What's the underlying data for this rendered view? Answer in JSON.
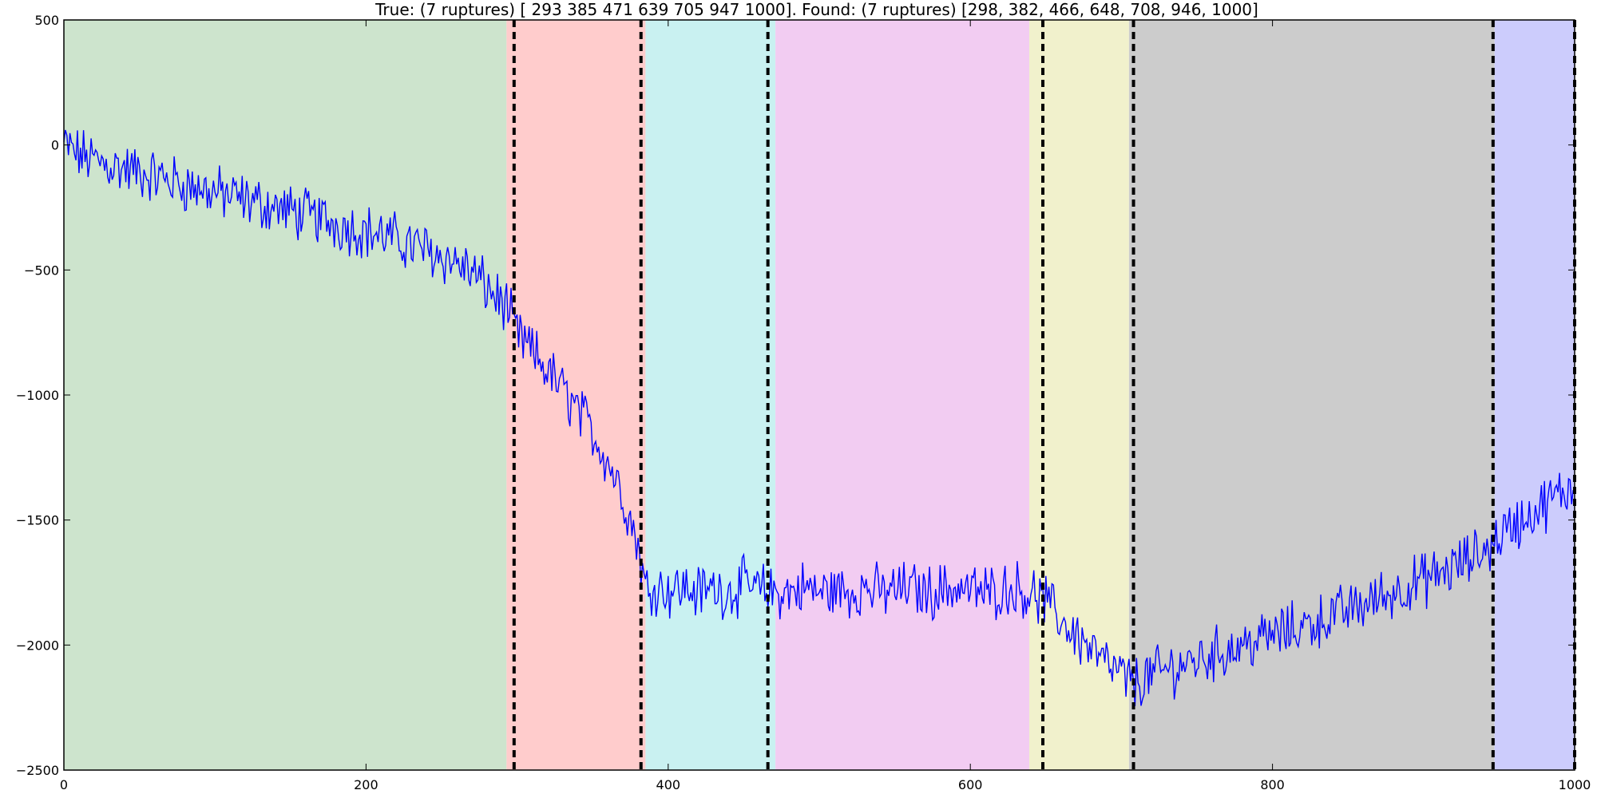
{
  "chart_data": {
    "type": "line",
    "title": "True: (7 ruptures) [ 293  385  471  639  705  947 1000]. Found: (7 ruptures) [298, 382, 466, 648, 708, 946, 1000]",
    "xlabel": "",
    "ylabel": "",
    "xlim": [
      0,
      1000
    ],
    "ylim": [
      -2500,
      500
    ],
    "xticks": [
      0,
      200,
      400,
      600,
      800,
      1000
    ],
    "yticks": [
      500,
      0,
      -500,
      -1000,
      -1500,
      -2000,
      -2500
    ],
    "grid": false,
    "legend": "none",
    "line_color": "#0000ff",
    "true_breakpoints": [
      293,
      385,
      471,
      639,
      705,
      947,
      1000
    ],
    "found_breakpoints": [
      298,
      382,
      466,
      648,
      708,
      946,
      1000
    ],
    "regimes": [
      {
        "start": 0,
        "end": 293,
        "color": "#cde4cd"
      },
      {
        "start": 293,
        "end": 385,
        "color": "#ffcccc"
      },
      {
        "start": 385,
        "end": 471,
        "color": "#c9f1f1"
      },
      {
        "start": 471,
        "end": 639,
        "color": "#f2ccf2"
      },
      {
        "start": 639,
        "end": 705,
        "color": "#f1f1cc"
      },
      {
        "start": 705,
        "end": 947,
        "color": "#cccccc"
      },
      {
        "start": 947,
        "end": 1000,
        "color": "#ccccfc"
      }
    ],
    "series": [
      {
        "description": "piecewise signal: slow linear decline to ~-650 at 293, steep decline to ~-1800 at 385, flat ~-1780 until 639, decline to ~-2150 at 705, rise to ~-1550 at 947, rise to ~-1350 at 1000, with noise",
        "x": [
          0,
          10,
          20,
          30,
          40,
          50,
          60,
          70,
          80,
          90,
          100,
          110,
          120,
          130,
          140,
          150,
          160,
          170,
          180,
          190,
          200,
          210,
          220,
          230,
          240,
          250,
          260,
          270,
          280,
          290,
          293,
          300,
          310,
          320,
          330,
          340,
          350,
          360,
          370,
          380,
          385,
          390,
          400,
          410,
          420,
          430,
          440,
          450,
          460,
          471,
          480,
          490,
          500,
          510,
          520,
          530,
          540,
          550,
          560,
          570,
          580,
          590,
          600,
          610,
          620,
          630,
          639,
          650,
          660,
          670,
          680,
          690,
          700,
          705,
          710,
          720,
          730,
          740,
          750,
          760,
          770,
          780,
          790,
          800,
          810,
          820,
          830,
          840,
          850,
          860,
          870,
          880,
          890,
          900,
          910,
          920,
          930,
          940,
          947,
          950,
          960,
          970,
          980,
          990,
          1000
        ],
        "y": [
          0,
          -40,
          -60,
          -80,
          -95,
          -110,
          -125,
          -140,
          -160,
          -175,
          -190,
          -205,
          -220,
          -235,
          -250,
          -265,
          -280,
          -295,
          -315,
          -330,
          -345,
          -360,
          -380,
          -400,
          -420,
          -445,
          -470,
          -510,
          -570,
          -630,
          -650,
          -760,
          -830,
          -900,
          -980,
          -1060,
          -1150,
          -1260,
          -1400,
          -1600,
          -1780,
          -1760,
          -1780,
          -1770,
          -1790,
          -1770,
          -1790,
          -1760,
          -1780,
          -1790,
          -1790,
          -1770,
          -1790,
          -1780,
          -1790,
          -1770,
          -1790,
          -1780,
          -1770,
          -1790,
          -1780,
          -1770,
          -1780,
          -1790,
          -1780,
          -1770,
          -1790,
          -1830,
          -1900,
          -1960,
          -2020,
          -2080,
          -2120,
          -2150,
          -2150,
          -2120,
          -2100,
          -2080,
          -2060,
          -2040,
          -2020,
          -2000,
          -1980,
          -1960,
          -1945,
          -1925,
          -1905,
          -1880,
          -1860,
          -1840,
          -1810,
          -1790,
          -1760,
          -1740,
          -1720,
          -1690,
          -1660,
          -1620,
          -1590,
          -1560,
          -1520,
          -1480,
          -1440,
          -1400,
          -1360
        ]
      }
    ]
  }
}
